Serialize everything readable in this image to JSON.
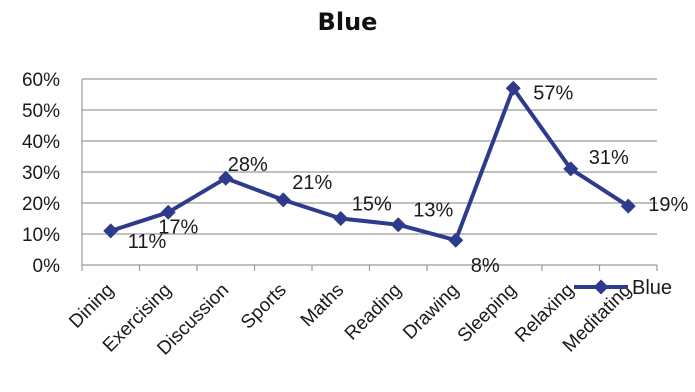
{
  "chart_data": {
    "type": "line",
    "title": "Blue",
    "xlabel": "",
    "ylabel": "",
    "categories": [
      "Dining",
      "Exercising",
      "Discussion",
      "Sports",
      "Maths",
      "Reading",
      "Drawing",
      "Sleeping",
      "Relaxing",
      "Meditating"
    ],
    "series": [
      {
        "name": "Blue",
        "values": [
          0.11,
          0.17,
          0.28,
          0.21,
          0.15,
          0.13,
          0.08,
          0.57,
          0.31,
          0.19
        ]
      }
    ],
    "data_labels": [
      "11%",
      "17%",
      "28%",
      "21%",
      "15%",
      "13%",
      "8%",
      "57%",
      "31%",
      "19%"
    ],
    "ylim": [
      0,
      0.6
    ],
    "yticks": [
      "0%",
      "10%",
      "20%",
      "30%",
      "40%",
      "50%",
      "60%"
    ],
    "grid": true,
    "legend_position": "bottom-right",
    "series_color": "#2e3a8c",
    "marker": "diamond"
  }
}
